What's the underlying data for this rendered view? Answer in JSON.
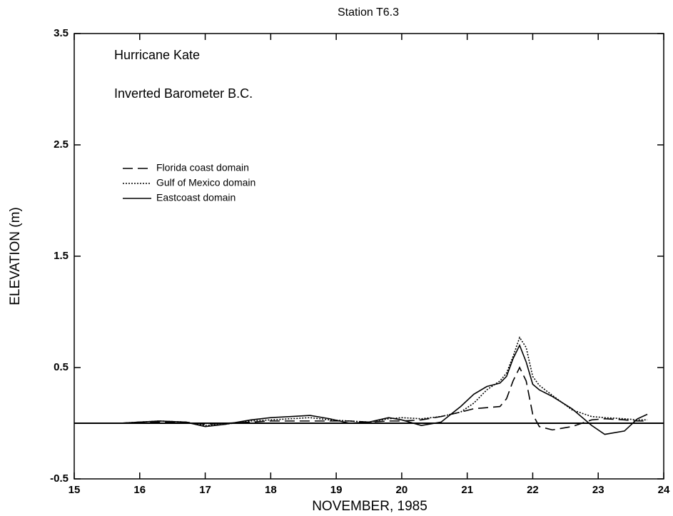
{
  "chart_data": {
    "type": "line",
    "title": "Station T6.3",
    "xlabel": "NOVEMBER, 1985",
    "ylabel": "ELEVATION (m)",
    "annotations": [
      "Hurricane Kate",
      "Inverted Barometer B.C."
    ],
    "xlim": [
      15,
      24
    ],
    "xticks": [
      15,
      16,
      17,
      18,
      19,
      20,
      21,
      22,
      23,
      24
    ],
    "ylim": [
      -0.5,
      3.5
    ],
    "yticks": [
      -0.5,
      0.5,
      1.5,
      2.5,
      3.5
    ],
    "reference_line": 0,
    "legend": "upper left",
    "x": [
      15.7,
      16,
      16.3,
      16.7,
      17,
      17.3,
      17.7,
      18,
      18.3,
      18.6,
      18.9,
      19.2,
      19.5,
      19.8,
      20,
      20.3,
      20.6,
      20.9,
      21.1,
      21.3,
      21.5,
      21.6,
      21.7,
      21.8,
      21.9,
      22,
      22.1,
      22.3,
      22.6,
      22.9,
      23.1,
      23.4,
      23.6,
      23.75
    ],
    "series": [
      {
        "name": "Florida coast domain",
        "color": "#000000",
        "dash": "dashed",
        "values": [
          0,
          0.01,
          0.01,
          0.01,
          -0.01,
          0,
          0.01,
          0.02,
          0.02,
          0.02,
          0.02,
          0.02,
          0.01,
          0.02,
          0.02,
          0.03,
          0.06,
          0.1,
          0.13,
          0.14,
          0.15,
          0.22,
          0.38,
          0.5,
          0.38,
          0.08,
          -0.03,
          -0.06,
          -0.03,
          0.03,
          0.04,
          0.03,
          0.02,
          0.02
        ]
      },
      {
        "name": "Gulf of Mexico domain",
        "color": "#000000",
        "dash": "dotted",
        "values": [
          0,
          0.01,
          0.02,
          0.01,
          -0.02,
          -0.01,
          0.02,
          0.03,
          0.04,
          0.05,
          0.03,
          0.02,
          0.01,
          0.04,
          0.05,
          0.04,
          0.06,
          0.1,
          0.18,
          0.3,
          0.38,
          0.45,
          0.6,
          0.77,
          0.68,
          0.42,
          0.34,
          0.25,
          0.12,
          0.06,
          0.05,
          0.04,
          0.03,
          0.03
        ]
      },
      {
        "name": "Eastcoast domain",
        "color": "#000000",
        "dash": "solid",
        "values": [
          0,
          0.01,
          0.02,
          0.01,
          -0.03,
          -0.01,
          0.03,
          0.05,
          0.06,
          0.07,
          0.04,
          0,
          0.01,
          0.05,
          0.03,
          -0.02,
          0.01,
          0.15,
          0.26,
          0.33,
          0.36,
          0.42,
          0.58,
          0.7,
          0.55,
          0.35,
          0.3,
          0.24,
          0.13,
          -0.02,
          -0.1,
          -0.07,
          0.04,
          0.08
        ]
      }
    ]
  }
}
